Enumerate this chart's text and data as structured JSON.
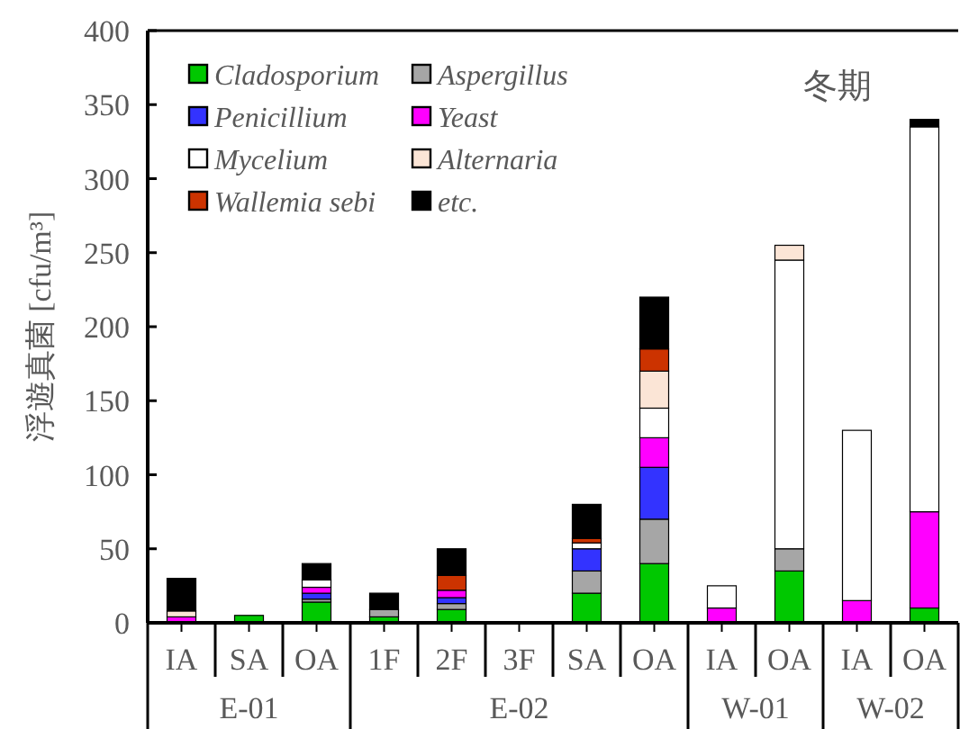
{
  "chart_data": {
    "type": "bar",
    "stacked": true,
    "ylabel": "浮遊真菌 [cfu/m³]",
    "categories": [
      "IA",
      "SA",
      "OA",
      "1F",
      "2F",
      "3F",
      "SA",
      "OA",
      "IA",
      "OA",
      "IA",
      "OA"
    ],
    "ylim": [
      0,
      400
    ],
    "yticks": [
      0,
      50,
      100,
      150,
      200,
      250,
      300,
      350,
      400
    ],
    "legend": "top left",
    "annotations": [
      "冬期",
      "E-01",
      "E-02",
      "W-01",
      "W-02"
    ],
    "series": [
      {
        "name": "Cladosporium",
        "color": "#00c800",
        "values": [
          0,
          5,
          14,
          4,
          9,
          0,
          20,
          40,
          0,
          35,
          0,
          10
        ]
      },
      {
        "name": "Aspergillus",
        "color": "#a6a6a6",
        "values": [
          0,
          0,
          2,
          5,
          4,
          0,
          15,
          30,
          0,
          15,
          0,
          0
        ]
      },
      {
        "name": "Penicillium",
        "color": "#3333ff",
        "values": [
          0,
          0,
          4,
          0,
          4,
          0,
          15,
          35,
          0,
          0,
          0,
          0
        ]
      },
      {
        "name": "Yeast",
        "color": "#ff00ff",
        "values": [
          4,
          0,
          4,
          0,
          5,
          0,
          0,
          20,
          10,
          0,
          15,
          65
        ]
      },
      {
        "name": "Mycelium",
        "color": "#ffffff",
        "values": [
          0,
          0,
          5,
          0,
          0,
          0,
          4,
          20,
          15,
          195,
          115,
          260
        ]
      },
      {
        "name": "Alternaria",
        "color": "#fbe5d6",
        "values": [
          4,
          0,
          0,
          0,
          0,
          0,
          0,
          25,
          0,
          10,
          0,
          0
        ]
      },
      {
        "name": "Wallemia sebi",
        "color": "#cc3300",
        "values": [
          0,
          0,
          0,
          0,
          10,
          0,
          3,
          15,
          0,
          0,
          0,
          0
        ]
      },
      {
        "name": "etc.",
        "color": "#000000",
        "values": [
          22,
          0,
          11,
          11,
          18,
          0,
          23,
          35,
          0,
          0,
          0,
          5
        ]
      }
    ]
  }
}
